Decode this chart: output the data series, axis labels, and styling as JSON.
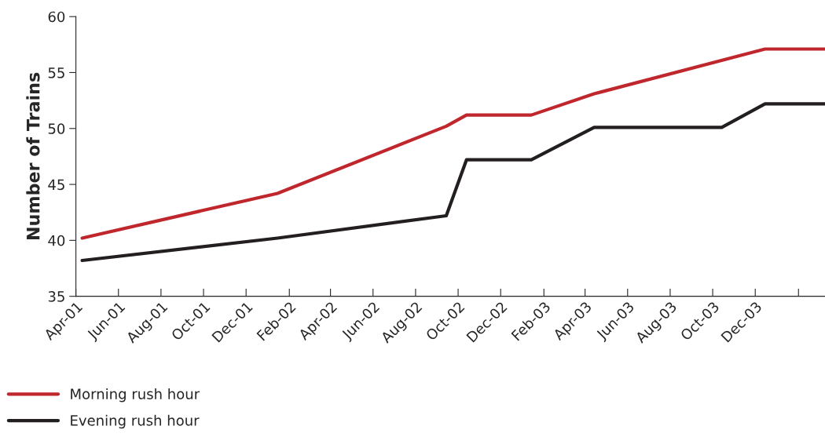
{
  "chart_data": {
    "type": "line",
    "ylabel": "Number of Trains",
    "series": [
      {
        "name": "Morning rush hour",
        "color": "#c0272d",
        "x": [
          "2001-04-10",
          "2002-01-15",
          "2002-09-14",
          "2002-10-13",
          "2003-01-14",
          "2003-04-14",
          "2003-12-15",
          "2004-03-10"
        ],
        "values": [
          40.2,
          44.2,
          50.2,
          51.2,
          51.2,
          53.1,
          57.1,
          57.1
        ]
      },
      {
        "name": "Evening rush hour",
        "color": "#231f20",
        "x": [
          "2001-04-10",
          "2002-01-15",
          "2002-09-14",
          "2002-10-13",
          "2003-01-14",
          "2003-04-14",
          "2003-10-14",
          "2003-12-15",
          "2004-03-10"
        ],
        "values": [
          38.2,
          40.2,
          42.2,
          47.2,
          47.2,
          50.1,
          50.1,
          52.2,
          52.2
        ]
      }
    ],
    "xlim": [
      "2001-04-01",
      "2004-03-10"
    ],
    "xticks": [
      {
        "value": "2001-04-01",
        "label": "Apr-01"
      },
      {
        "value": "2001-06-01",
        "label": "Jun-01"
      },
      {
        "value": "2001-08-01",
        "label": "Aug-01"
      },
      {
        "value": "2001-10-01",
        "label": "Oct-01"
      },
      {
        "value": "2001-12-01",
        "label": "Dec-01"
      },
      {
        "value": "2002-02-01",
        "label": "Feb-02"
      },
      {
        "value": "2002-04-01",
        "label": "Apr-02"
      },
      {
        "value": "2002-06-01",
        "label": "Jun-02"
      },
      {
        "value": "2002-08-01",
        "label": "Aug-02"
      },
      {
        "value": "2002-10-01",
        "label": "Oct-02"
      },
      {
        "value": "2002-12-01",
        "label": "Dec-02"
      },
      {
        "value": "2003-02-01",
        "label": "Feb-03"
      },
      {
        "value": "2003-04-01",
        "label": "Apr-03"
      },
      {
        "value": "2003-06-01",
        "label": "Jun-03"
      },
      {
        "value": "2003-08-01",
        "label": "Aug-03"
      },
      {
        "value": "2003-10-01",
        "label": "Oct-03"
      },
      {
        "value": "2003-12-01",
        "label": "Dec-03"
      },
      {
        "value": "2004-02-01",
        "label": null
      }
    ],
    "ylim": [
      35,
      60
    ],
    "yticks": [
      35,
      40,
      45,
      50,
      55,
      60
    ],
    "grid": false,
    "legend": "bottom left",
    "marker": "none",
    "line_style": "solid"
  }
}
